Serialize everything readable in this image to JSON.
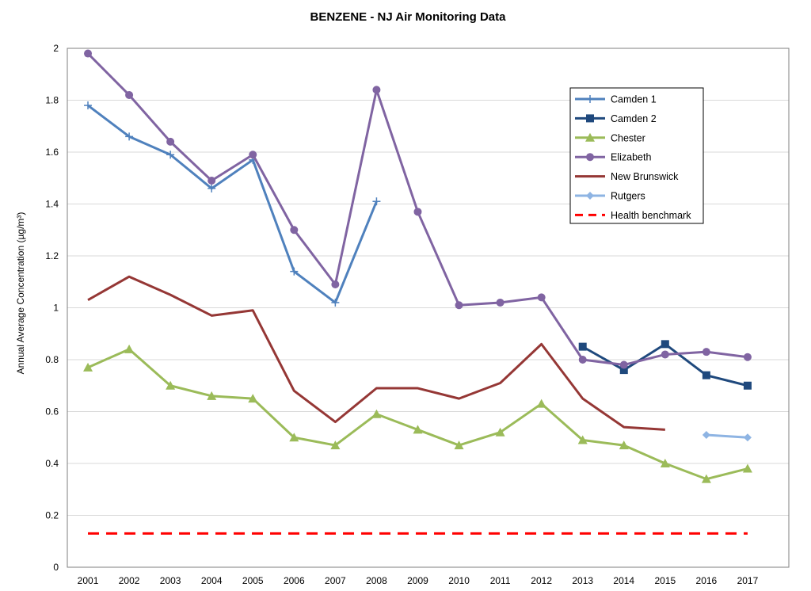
{
  "chart_data": {
    "type": "line",
    "title": "BENZENE - NJ Air Monitoring Data",
    "xlabel": "",
    "ylabel": "Annual Average Concentration (µg/m³)",
    "ylim": [
      0,
      2
    ],
    "yticks": [
      "0",
      "0.2",
      "0.4",
      "0.6",
      "0.8",
      "1",
      "1.2",
      "1.4",
      "1.6",
      "1.8",
      "2"
    ],
    "x": [
      "2001",
      "2002",
      "2003",
      "2004",
      "2005",
      "2006",
      "2007",
      "2008",
      "2009",
      "2010",
      "2011",
      "2012",
      "2013",
      "2014",
      "2015",
      "2016",
      "2017"
    ],
    "grid": true,
    "legend_position": "top-right",
    "series": [
      {
        "name": "Camden 1",
        "color": "#4f81bd",
        "marker": "plus",
        "width": 3,
        "values": [
          1.78,
          1.66,
          1.59,
          1.46,
          1.57,
          1.14,
          1.02,
          1.41,
          null,
          null,
          null,
          null,
          null,
          null,
          null,
          null,
          null
        ]
      },
      {
        "name": "Camden 2",
        "color": "#1f497d",
        "marker": "square",
        "width": 3,
        "values": [
          null,
          null,
          null,
          null,
          null,
          null,
          null,
          null,
          null,
          null,
          null,
          null,
          0.85,
          0.76,
          0.86,
          0.74,
          0.7
        ]
      },
      {
        "name": "Chester",
        "color": "#9bbb59",
        "marker": "triangle",
        "width": 3,
        "values": [
          0.77,
          0.84,
          0.7,
          0.66,
          0.65,
          0.5,
          0.47,
          0.59,
          0.53,
          0.47,
          0.52,
          0.63,
          0.49,
          0.47,
          0.4,
          0.34,
          0.38
        ]
      },
      {
        "name": "Elizabeth",
        "color": "#8064a2",
        "marker": "circle",
        "width": 3,
        "values": [
          1.98,
          1.82,
          1.64,
          1.49,
          1.59,
          1.3,
          1.09,
          1.84,
          1.37,
          1.01,
          1.02,
          1.04,
          0.8,
          0.78,
          0.82,
          0.83,
          0.81
        ]
      },
      {
        "name": "New Brunswick",
        "color": "#953735",
        "marker": "none",
        "width": 3,
        "values": [
          1.03,
          1.12,
          1.05,
          0.97,
          0.99,
          0.68,
          0.56,
          0.69,
          0.69,
          0.65,
          0.71,
          0.86,
          0.65,
          0.54,
          0.53,
          null,
          null
        ]
      },
      {
        "name": "Rutgers",
        "color": "#8eb4e3",
        "marker": "diamond",
        "width": 3,
        "values": [
          null,
          null,
          null,
          null,
          null,
          null,
          null,
          null,
          null,
          null,
          null,
          null,
          null,
          null,
          null,
          0.51,
          0.5
        ]
      },
      {
        "name": "Health benchmark",
        "color": "#ff0000",
        "marker": "none",
        "dash": true,
        "width": 3,
        "values": [
          0.13,
          0.13,
          0.13,
          0.13,
          0.13,
          0.13,
          0.13,
          0.13,
          0.13,
          0.13,
          0.13,
          0.13,
          0.13,
          0.13,
          0.13,
          0.13,
          0.13
        ]
      }
    ]
  }
}
